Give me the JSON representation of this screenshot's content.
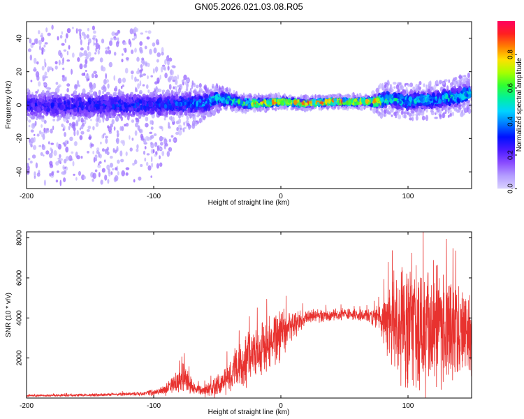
{
  "figure_title": "GN05.2026.021.03.08.R05",
  "colors": {
    "snr_line": "#e8322f",
    "frame": "#000000"
  },
  "colormap_stops": [
    "#d9d2ff",
    "#b39cff",
    "#8a4cff",
    "#4a1aff",
    "#0010ff",
    "#0078ff",
    "#00d4ff",
    "#00f0a0",
    "#30ff30",
    "#a8ff00",
    "#ffe000",
    "#ff8000",
    "#ff2020",
    "#ff0060"
  ],
  "chart_data": [
    {
      "type": "heatmap",
      "title": "",
      "xlabel": "Height of straight line (km)",
      "ylabel": "Frequency (Hz)",
      "xlim": [
        -200,
        150
      ],
      "ylim": [
        -50,
        50
      ],
      "xticks": [
        "-200",
        "-100",
        "0",
        "100"
      ],
      "yticks": [
        "-40",
        "-20",
        "0",
        "20",
        "40"
      ],
      "colorbar": {
        "label": "Normalized spectral amplitude",
        "range": [
          0.0,
          1.0
        ],
        "ticks": [
          "0.0",
          "0.2",
          "0.4",
          "0.6",
          "0.8"
        ]
      },
      "band_center_hz": [
        [
          -200,
          0
        ],
        [
          -150,
          0
        ],
        [
          -100,
          0
        ],
        [
          -60,
          1
        ],
        [
          -50,
          4
        ],
        [
          -40,
          3
        ],
        [
          -30,
          1
        ],
        [
          -20,
          1
        ],
        [
          0,
          2
        ],
        [
          20,
          1
        ],
        [
          40,
          2
        ],
        [
          60,
          2
        ],
        [
          75,
          2
        ],
        [
          85,
          4
        ],
        [
          100,
          2
        ],
        [
          110,
          3
        ],
        [
          120,
          3
        ],
        [
          130,
          4
        ],
        [
          140,
          5
        ],
        [
          150,
          8
        ]
      ],
      "band_halfwidth_hz": [
        [
          -200,
          9
        ],
        [
          -100,
          8
        ],
        [
          -60,
          7
        ],
        [
          -50,
          5
        ],
        [
          -30,
          3
        ],
        [
          0,
          2
        ],
        [
          70,
          2
        ],
        [
          80,
          5
        ],
        [
          100,
          6
        ],
        [
          150,
          6
        ]
      ],
      "band_peak_amplitude": [
        [
          -200,
          0.3
        ],
        [
          -100,
          0.35
        ],
        [
          -60,
          0.45
        ],
        [
          -50,
          0.55
        ],
        [
          -30,
          0.65
        ],
        [
          -20,
          0.85
        ],
        [
          0,
          0.95
        ],
        [
          60,
          0.95
        ],
        [
          75,
          0.9
        ],
        [
          85,
          0.6
        ],
        [
          100,
          0.55
        ],
        [
          120,
          0.5
        ],
        [
          150,
          0.6
        ]
      ],
      "scatter_extent_hz": [
        [
          -200,
          48
        ],
        [
          -100,
          45
        ],
        [
          -80,
          18
        ],
        [
          -60,
          10
        ],
        [
          -40,
          6
        ],
        [
          0,
          4
        ],
        [
          70,
          4
        ],
        [
          80,
          10
        ],
        [
          150,
          12
        ]
      ]
    },
    {
      "type": "line",
      "title": "",
      "xlabel": "Height of straight line (km)",
      "ylabel": "SNR (10 * v/v)",
      "xlim": [
        -200,
        150
      ],
      "ylim": [
        0,
        8300
      ],
      "xticks": [
        "-200",
        "-100",
        "0",
        "100"
      ],
      "yticks": [
        "2000",
        "4000",
        "6000",
        "8000"
      ],
      "series": [
        {
          "name": "SNR",
          "x": [
            -200,
            -150,
            -110,
            -100,
            -90,
            -82,
            -76,
            -72,
            -68,
            -62,
            -55,
            -45,
            -38,
            -30,
            -22,
            -15,
            -5,
            0,
            10,
            20,
            30,
            40,
            50,
            60,
            70,
            78,
            85,
            95,
            105,
            115,
            125,
            135,
            145,
            150
          ],
          "mean": [
            120,
            150,
            220,
            280,
            450,
            750,
            1000,
            700,
            450,
            350,
            420,
            900,
            1300,
            1700,
            2200,
            2500,
            2900,
            3200,
            3700,
            4000,
            4100,
            4150,
            4200,
            4150,
            4100,
            4000,
            3900,
            3700,
            3600,
            3500,
            3400,
            3300,
            3300,
            3200
          ],
          "spread": [
            60,
            80,
            120,
            180,
            350,
            650,
            900,
            600,
            350,
            300,
            500,
            800,
            1100,
            1400,
            1500,
            1600,
            1700,
            1500,
            800,
            500,
            400,
            350,
            350,
            300,
            400,
            800,
            2200,
            3400,
            3800,
            3800,
            3600,
            3000,
            2600,
            2500
          ]
        }
      ],
      "grid": false
    }
  ]
}
